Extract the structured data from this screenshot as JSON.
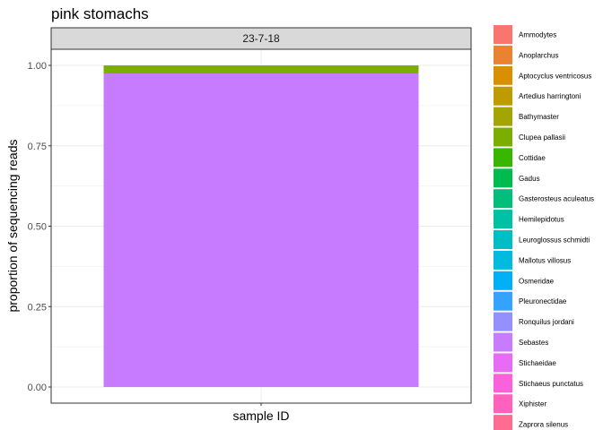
{
  "chart_data": {
    "type": "bar",
    "title": "pink stomachs",
    "xlabel": "sample ID",
    "ylabel": "proportion of sequencing reads",
    "facet": "23-7-18",
    "ylim": [
      0,
      1
    ],
    "yticks": [
      0,
      0.25,
      0.5,
      0.75,
      1
    ],
    "ytick_labels": [
      "0.00",
      "0.25",
      "0.50",
      "0.75",
      "1.00"
    ],
    "grid": true,
    "stacked": true,
    "legend_position": "right",
    "categories": [
      ""
    ],
    "series": [
      {
        "name": "Ammodytes",
        "color": "#F8766D",
        "values": [
          0
        ]
      },
      {
        "name": "Anoplarchus",
        "color": "#EA8331",
        "values": [
          0
        ]
      },
      {
        "name": "Aptocyclus ventricosus",
        "color": "#D89000",
        "values": [
          0
        ]
      },
      {
        "name": "Artedius harringtoni",
        "color": "#C09B00",
        "values": [
          0
        ]
      },
      {
        "name": "Bathymaster",
        "color": "#A3A500",
        "values": [
          0
        ]
      },
      {
        "name": "Clupea pallasii",
        "color": "#7CAE00",
        "values": [
          0.025
        ]
      },
      {
        "name": "Cottidae",
        "color": "#39B600",
        "values": [
          0
        ]
      },
      {
        "name": "Gadus",
        "color": "#00BB4E",
        "values": [
          0
        ]
      },
      {
        "name": "Gasterosteus aculeatus",
        "color": "#00BF7D",
        "values": [
          0
        ]
      },
      {
        "name": "Hemilepidotus",
        "color": "#00C1A3",
        "values": [
          0
        ]
      },
      {
        "name": "Leuroglossus schmidti",
        "color": "#00BFC4",
        "values": [
          0
        ]
      },
      {
        "name": "Mallotus villosus",
        "color": "#00BAE0",
        "values": [
          0
        ]
      },
      {
        "name": "Osmeridae",
        "color": "#00B0F6",
        "values": [
          0
        ]
      },
      {
        "name": "Pleuronectidae",
        "color": "#35A2FF",
        "values": [
          0
        ]
      },
      {
        "name": "Ronquilus jordani",
        "color": "#9590FF",
        "values": [
          0
        ]
      },
      {
        "name": "Sebastes",
        "color": "#C77CFF",
        "values": [
          0.975
        ]
      },
      {
        "name": "Stichaeidae",
        "color": "#E76BF3",
        "values": [
          0
        ]
      },
      {
        "name": "Stichaeus punctatus",
        "color": "#FA62DB",
        "values": [
          0
        ]
      },
      {
        "name": "Xiphister",
        "color": "#FF62BC",
        "values": [
          0
        ]
      },
      {
        "name": "Zaprora silenus",
        "color": "#FF6C91",
        "values": [
          0
        ]
      }
    ]
  }
}
